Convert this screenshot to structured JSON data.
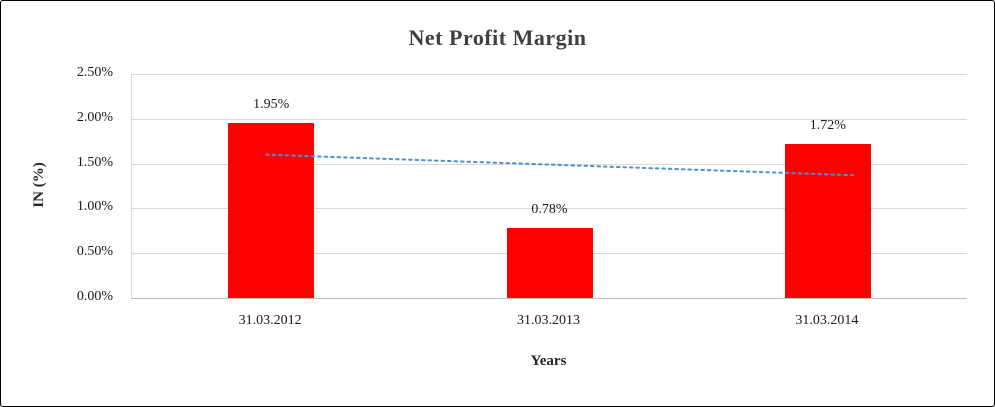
{
  "chart_data": {
    "type": "bar",
    "title": "Net Profit Margin",
    "xlabel": "Years",
    "ylabel": "IN (%)",
    "categories": [
      "31.03.2012",
      "31.03.2013",
      "31.03.2014"
    ],
    "values": [
      1.95,
      0.78,
      1.72
    ],
    "data_labels": [
      "1.95%",
      "0.78%",
      "1.72%"
    ],
    "ytick_labels": [
      "0.00%",
      "0.50%",
      "1.00%",
      "1.50%",
      "2.00%",
      "2.50%"
    ],
    "ytick_step": 0.5,
    "ylim": [
      0,
      2.5
    ],
    "grid": true,
    "legend": "none",
    "bar_color": "#ff0000",
    "trendline": {
      "type": "linear",
      "start": 1.6,
      "end": 1.37,
      "color": "#4a90d2",
      "style": "dotted"
    }
  }
}
